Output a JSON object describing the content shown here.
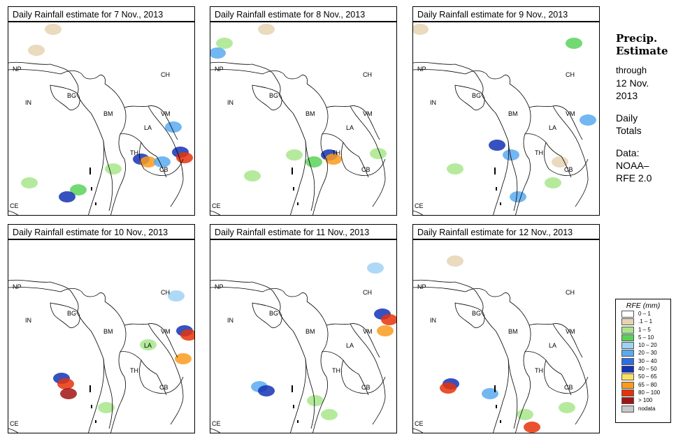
{
  "panels": [
    {
      "title": "Daily Rainfall estimate for  7 Nov., 2013"
    },
    {
      "title": "Daily Rainfall estimate for  8 Nov., 2013"
    },
    {
      "title": "Daily Rainfall estimate for  9 Nov., 2013"
    },
    {
      "title": "Daily Rainfall estimate for  10 Nov., 2013"
    },
    {
      "title": "Daily Rainfall estimate for  11 Nov., 2013"
    },
    {
      "title": "Daily Rainfall estimate for  12 Nov., 2013"
    }
  ],
  "map_labels": {
    "np": "NP",
    "ch": "CH",
    "in": "IN",
    "bg": "BG",
    "bm": "BM",
    "vm": "VM",
    "la": "LA",
    "th": "TH",
    "cb": "CB",
    "ce": "CE"
  },
  "side": {
    "title_1": "Precip.",
    "title_2": "Estimate",
    "through_1": "through",
    "through_2": "12 Nov.",
    "through_3": "2013",
    "daily_1": "Daily",
    "daily_2": "Totals",
    "data_1": "Data:",
    "data_2": "NOAA–",
    "data_3": "RFE 2.0"
  },
  "legend": {
    "title": "RFE (mm)",
    "items": [
      {
        "label": "0 – 1",
        "color": "#ffffff"
      },
      {
        "label": ".1 – 1",
        "color": "#e6d3b3"
      },
      {
        "label": "1 – 5",
        "color": "#a8e68c"
      },
      {
        "label": "5 – 10",
        "color": "#5ad25a"
      },
      {
        "label": "10 – 20",
        "color": "#9fd2f5"
      },
      {
        "label": "20 – 30",
        "color": "#5aaaf0"
      },
      {
        "label": "30 – 40",
        "color": "#2d6ee6"
      },
      {
        "label": "40 – 50",
        "color": "#1432b4"
      },
      {
        "label": "50 – 65",
        "color": "#fae164"
      },
      {
        "label": "65 – 80",
        "color": "#fa9b1e"
      },
      {
        "label": "80 – 100",
        "color": "#e6320a"
      },
      {
        "label": "> 100",
        "color": "#a01414"
      },
      {
        "label": "nodata",
        "color": "#c8c8c8"
      }
    ]
  }
}
